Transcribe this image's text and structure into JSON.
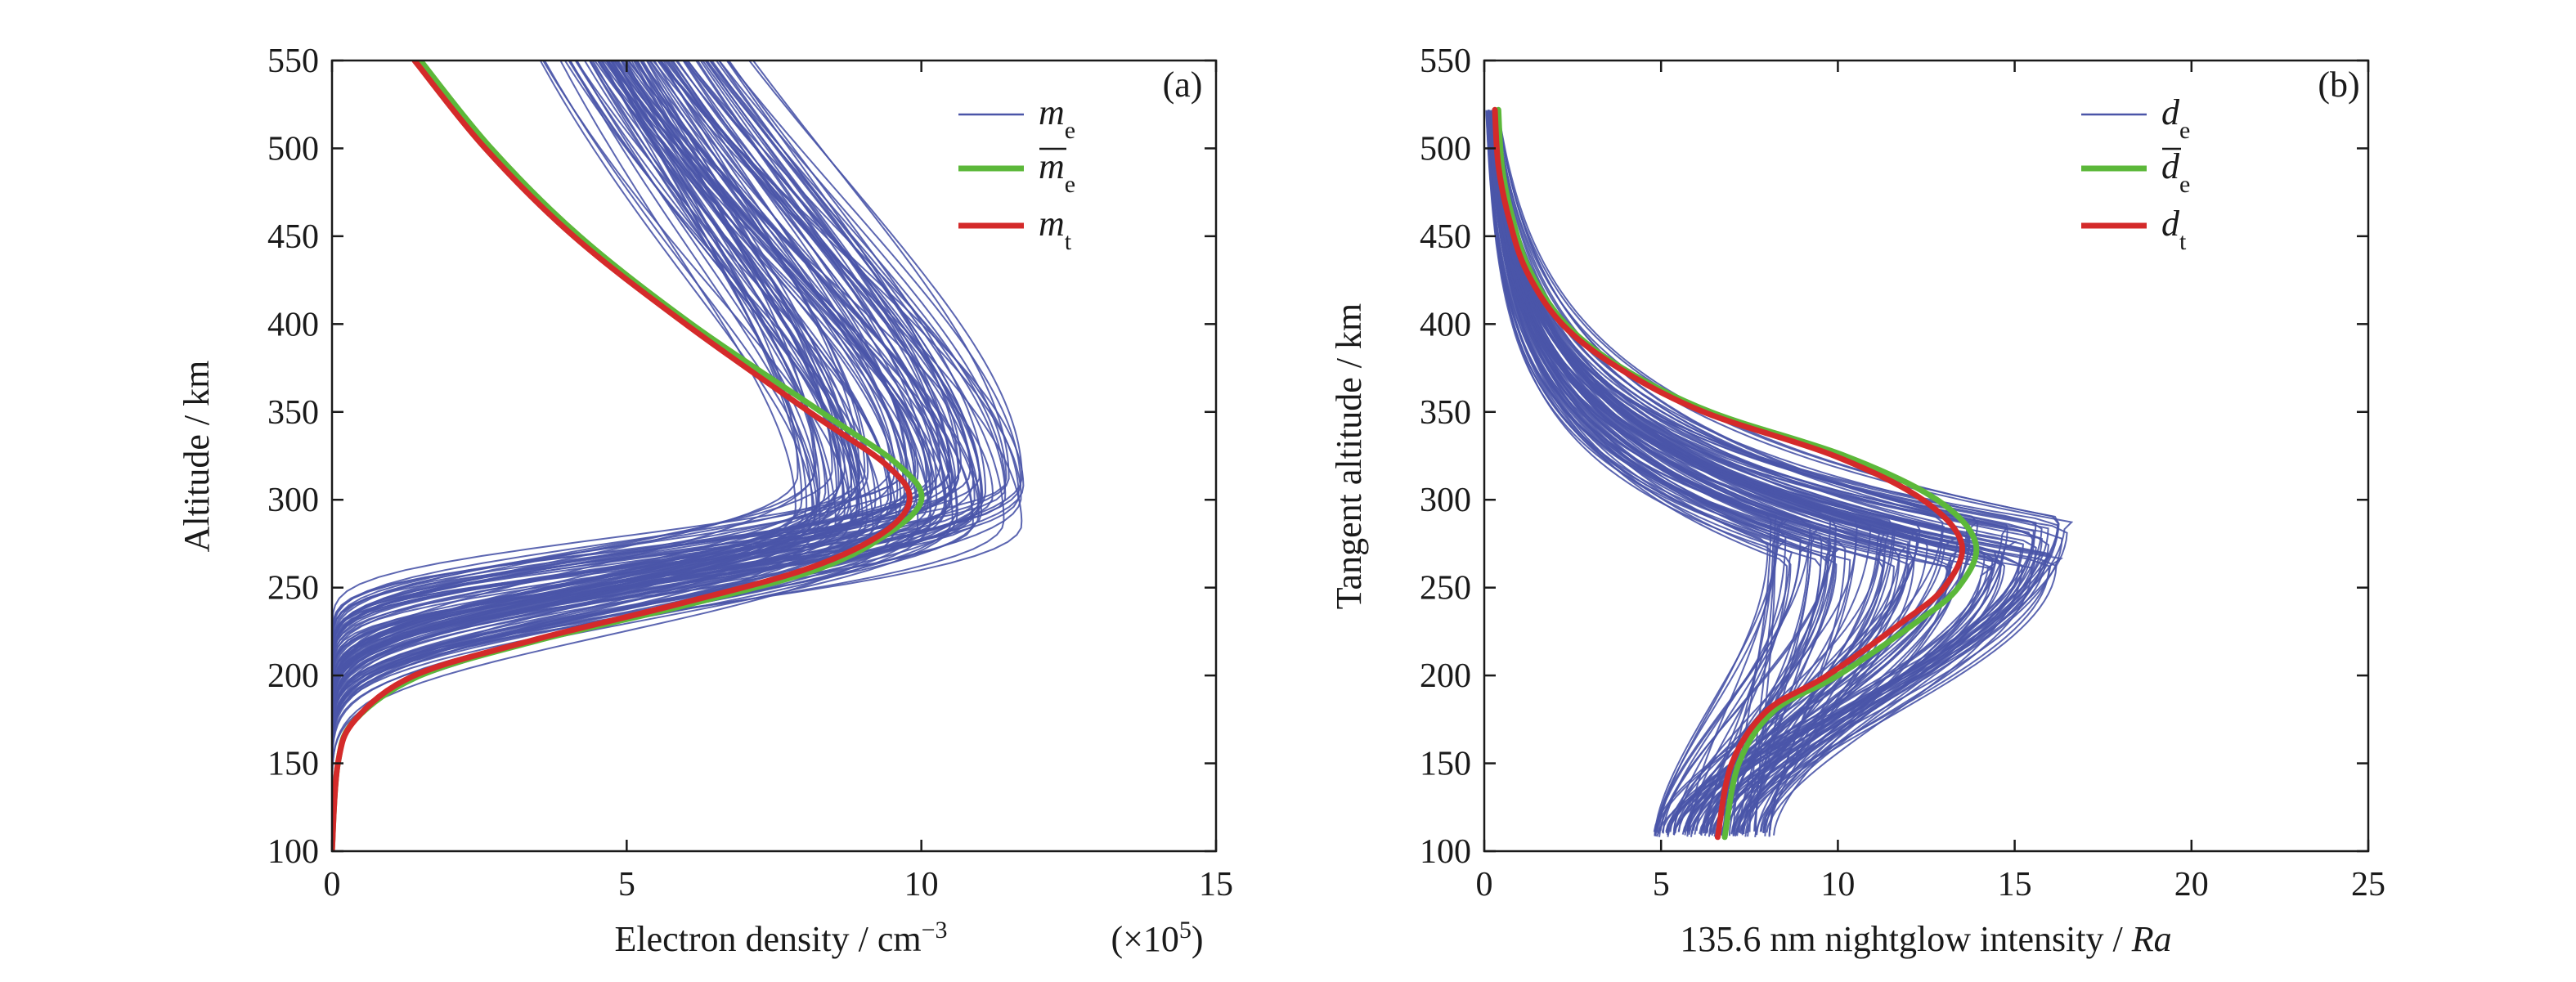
{
  "colors": {
    "ensemble": "#4a55a8",
    "mean": "#5cb83a",
    "truth": "#d42a2a",
    "axis": "#1a1a1a"
  },
  "chart_data": [
    {
      "type": "line",
      "panel_label": "(a)",
      "xlabel": "Electron density / cm",
      "xlabel_sup": "−3",
      "x_multiplier_pre": "(×10",
      "x_multiplier_sup": "5",
      "x_multiplier_post": ")",
      "ylabel": "Altitude / km",
      "xlim": [
        0,
        15
      ],
      "ylim": [
        100,
        550
      ],
      "xticks": [
        0,
        5,
        10,
        15
      ],
      "yticks": [
        100,
        150,
        200,
        250,
        300,
        350,
        400,
        450,
        500,
        550
      ],
      "grid": false,
      "legend_position": "top-right",
      "legend": [
        {
          "symbol": "m",
          "subscript": "e",
          "overline": false,
          "series": "ensemble"
        },
        {
          "symbol": "m",
          "subscript": "e",
          "overline": true,
          "series": "mean"
        },
        {
          "symbol": "m",
          "subscript": "t",
          "overline": false,
          "series": "truth"
        }
      ],
      "ensemble_count": 110,
      "ensemble_spread": {
        "amplitude_range": [
          7.8,
          11.8
        ],
        "peak_altitude_range": [
          285,
          320
        ]
      },
      "series": [
        {
          "key": "mean",
          "points": [
            [
              0.0,
              100
            ],
            [
              0.1,
              150
            ],
            [
              0.4,
              175
            ],
            [
              1.5,
              200
            ],
            [
              3.5,
              220
            ],
            [
              6.0,
              240
            ],
            [
              8.2,
              260
            ],
            [
              9.4,
              280
            ],
            [
              10.0,
              300
            ],
            [
              9.6,
              320
            ],
            [
              8.3,
              350
            ],
            [
              6.1,
              400
            ],
            [
              4.2,
              450
            ],
            [
              2.7,
              500
            ],
            [
              1.5,
              550
            ]
          ]
        },
        {
          "key": "truth",
          "points": [
            [
              0.0,
              100
            ],
            [
              0.1,
              150
            ],
            [
              0.4,
              175
            ],
            [
              1.4,
              200
            ],
            [
              3.4,
              220
            ],
            [
              5.8,
              240
            ],
            [
              8.0,
              260
            ],
            [
              9.3,
              280
            ],
            [
              9.8,
              300
            ],
            [
              9.4,
              320
            ],
            [
              8.1,
              350
            ],
            [
              6.0,
              400
            ],
            [
              4.1,
              450
            ],
            [
              2.6,
              500
            ],
            [
              1.4,
              550
            ]
          ]
        }
      ]
    },
    {
      "type": "line",
      "panel_label": "(b)",
      "xlabel": "135.6 nm nightglow intensity / ",
      "xlabel_unit": "Ra",
      "ylabel": "Tangent altitude / km",
      "xlim": [
        0,
        25
      ],
      "ylim": [
        100,
        550
      ],
      "xticks": [
        0,
        5,
        10,
        15,
        20,
        25
      ],
      "yticks": [
        100,
        150,
        200,
        250,
        300,
        350,
        400,
        450,
        500,
        550
      ],
      "grid": false,
      "legend_position": "top-right",
      "legend": [
        {
          "symbol": "d",
          "subscript": "e",
          "overline": false,
          "series": "ensemble"
        },
        {
          "symbol": "d",
          "subscript": "e",
          "overline": true,
          "series": "mean"
        },
        {
          "symbol": "d",
          "subscript": "t",
          "overline": false,
          "series": "truth"
        }
      ],
      "ensemble_count": 110,
      "ensemble_spread": {
        "amplitude_range": [
          8.0,
          16.5
        ],
        "peak_altitude_range": [
          260,
          290
        ]
      },
      "series": [
        {
          "key": "mean",
          "points": [
            [
              6.8,
              108
            ],
            [
              7.2,
              150
            ],
            [
              8.2,
              180
            ],
            [
              10.0,
              200
            ],
            [
              12.2,
              230
            ],
            [
              13.4,
              250
            ],
            [
              13.9,
              275
            ],
            [
              12.8,
              300
            ],
            [
              10.2,
              325
            ],
            [
              6.4,
              350
            ],
            [
              3.9,
              375
            ],
            [
              2.3,
              400
            ],
            [
              1.3,
              430
            ],
            [
              0.8,
              460
            ],
            [
              0.5,
              490
            ],
            [
              0.4,
              522
            ]
          ]
        },
        {
          "key": "truth",
          "points": [
            [
              6.6,
              108
            ],
            [
              7.0,
              150
            ],
            [
              8.0,
              180
            ],
            [
              9.7,
              200
            ],
            [
              11.8,
              230
            ],
            [
              13.0,
              250
            ],
            [
              13.5,
              275
            ],
            [
              12.4,
              300
            ],
            [
              9.9,
              325
            ],
            [
              6.2,
              350
            ],
            [
              3.8,
              375
            ],
            [
              2.2,
              400
            ],
            [
              1.2,
              430
            ],
            [
              0.7,
              460
            ],
            [
              0.4,
              490
            ],
            [
              0.3,
              522
            ]
          ]
        }
      ]
    }
  ]
}
